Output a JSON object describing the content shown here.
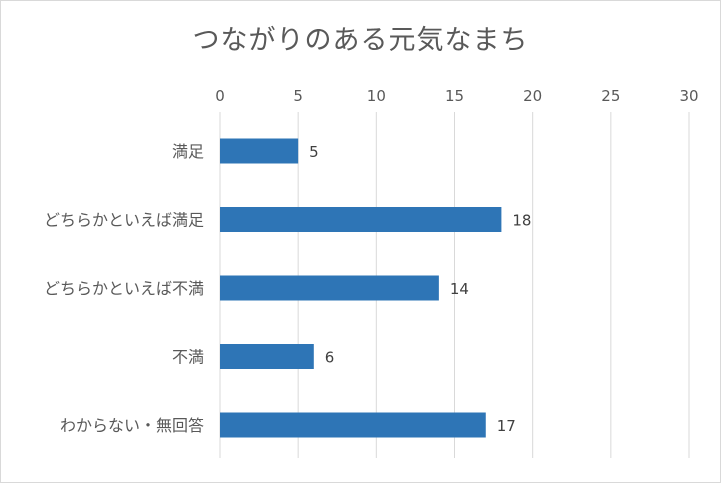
{
  "chart_data": {
    "type": "bar",
    "orientation": "horizontal",
    "title": "つながりのある元気なまち",
    "categories": [
      "満足",
      "どちらかといえば満足",
      "どちらかといえば不満",
      "不満",
      "わからない・無回答"
    ],
    "values": [
      5,
      18,
      14,
      6,
      17
    ],
    "xlim": [
      0,
      30
    ],
    "x_ticks": [
      0,
      5,
      10,
      15,
      20,
      25,
      30
    ],
    "x_axis_position": "top",
    "grid": true,
    "legend": "none",
    "colors": {
      "bar": "#2e75b6",
      "grid": "#d9d9d9",
      "text": "#595959",
      "label": "#404040"
    }
  }
}
